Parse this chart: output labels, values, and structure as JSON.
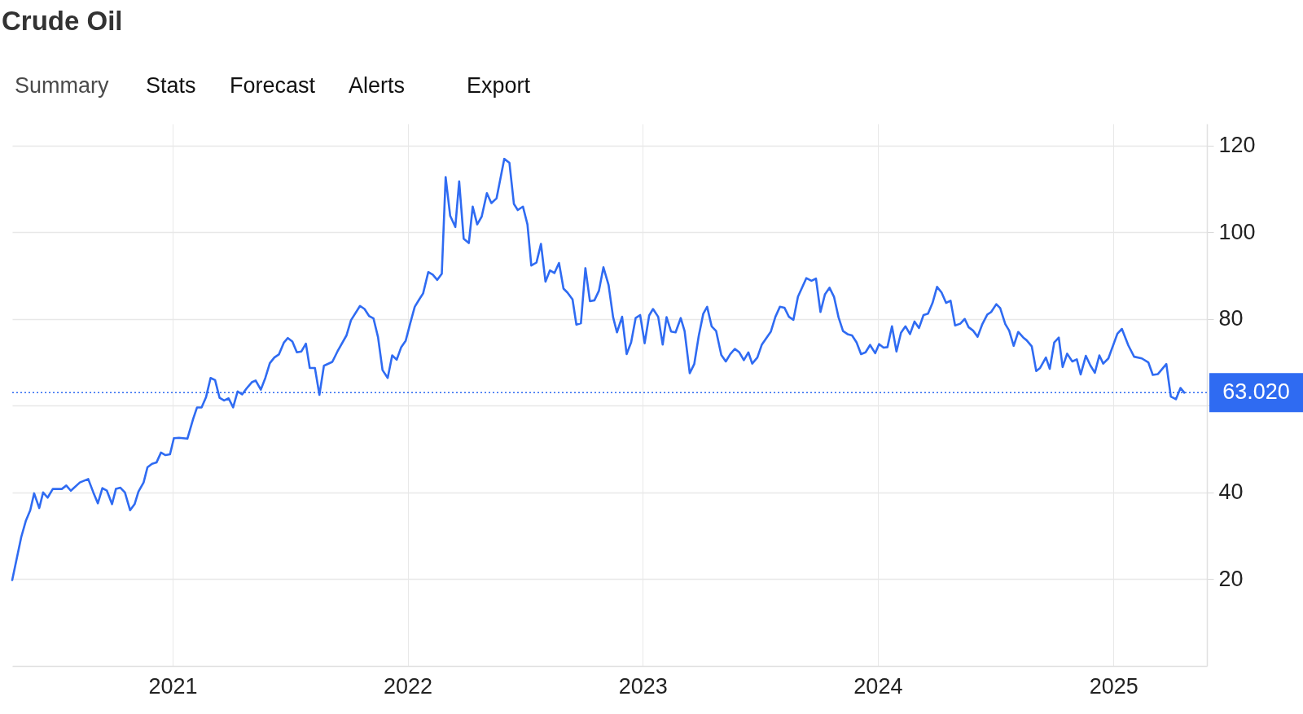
{
  "chart_data": {
    "type": "line",
    "title": "Crude Oil",
    "annotations": [
      "Summary",
      "Stats",
      "Forecast",
      "Alerts",
      "Export"
    ],
    "x": [
      "2020-04-27",
      "2020-05-11",
      "2020-05-18",
      "2020-05-25",
      "2020-05-31",
      "2020-06-08",
      "2020-06-14",
      "2020-06-21",
      "2020-06-29",
      "2020-07-13",
      "2020-07-20",
      "2020-07-27",
      "2020-08-10",
      "2020-08-23",
      "2020-08-31",
      "2020-09-07",
      "2020-09-14",
      "2020-09-21",
      "2020-09-29",
      "2020-10-05",
      "2020-10-12",
      "2020-10-19",
      "2020-10-27",
      "2020-11-03",
      "2020-11-09",
      "2020-11-17",
      "2020-11-23",
      "2020-11-30",
      "2020-12-07",
      "2020-12-14",
      "2020-12-21",
      "2020-12-28",
      "2021-01-03",
      "2021-01-11",
      "2021-01-24",
      "2021-02-02",
      "2021-02-08",
      "2021-02-15",
      "2021-02-22",
      "2021-03-01",
      "2021-03-08",
      "2021-03-15",
      "2021-03-22",
      "2021-03-29",
      "2021-04-05",
      "2021-04-12",
      "2021-04-19",
      "2021-04-26",
      "2021-05-04",
      "2021-05-10",
      "2021-05-18",
      "2021-05-25",
      "2021-06-01",
      "2021-06-08",
      "2021-06-15",
      "2021-06-23",
      "2021-06-29",
      "2021-07-06",
      "2021-07-13",
      "2021-07-20",
      "2021-07-27",
      "2021-08-02",
      "2021-08-10",
      "2021-08-17",
      "2021-08-24",
      "2021-09-06",
      "2021-09-14",
      "2021-09-28",
      "2021-10-05",
      "2021-10-19",
      "2021-10-26",
      "2021-11-02",
      "2021-11-09",
      "2021-11-16",
      "2021-11-23",
      "2021-12-01",
      "2021-12-08",
      "2021-12-15",
      "2021-12-22",
      "2021-12-29",
      "2022-01-05",
      "2022-01-12",
      "2022-01-19",
      "2022-01-25",
      "2022-02-02",
      "2022-02-09",
      "2022-02-16",
      "2022-02-23",
      "2022-03-01",
      "2022-03-08",
      "2022-03-16",
      "2022-03-22",
      "2022-03-29",
      "2022-04-06",
      "2022-04-12",
      "2022-04-19",
      "2022-04-26",
      "2022-05-04",
      "2022-05-11",
      "2022-05-19",
      "2022-05-31",
      "2022-06-08",
      "2022-06-15",
      "2022-06-21",
      "2022-06-29",
      "2022-07-06",
      "2022-07-12",
      "2022-07-20",
      "2022-07-27",
      "2022-08-03",
      "2022-08-10",
      "2022-08-17",
      "2022-08-24",
      "2022-08-31",
      "2022-09-06",
      "2022-09-14",
      "2022-09-20",
      "2022-09-27",
      "2022-10-04",
      "2022-10-11",
      "2022-10-18",
      "2022-10-25",
      "2022-11-01",
      "2022-11-09",
      "2022-11-16",
      "2022-11-22",
      "2022-11-30",
      "2022-12-07",
      "2022-12-14",
      "2022-12-21",
      "2022-12-28",
      "2023-01-04",
      "2023-01-11",
      "2023-01-17",
      "2023-01-25",
      "2023-02-01",
      "2023-02-07",
      "2023-02-14",
      "2023-02-21",
      "2023-03-01",
      "2023-03-07",
      "2023-03-15",
      "2023-03-22",
      "2023-03-29",
      "2023-04-05",
      "2023-04-11",
      "2023-04-18",
      "2023-04-25",
      "2023-05-03",
      "2023-05-10",
      "2023-05-17",
      "2023-05-24",
      "2023-05-31",
      "2023-06-07",
      "2023-06-14",
      "2023-06-20",
      "2023-06-28",
      "2023-07-05",
      "2023-07-12",
      "2023-07-19",
      "2023-07-26",
      "2023-08-02",
      "2023-08-09",
      "2023-08-16",
      "2023-08-23",
      "2023-08-30",
      "2023-09-06",
      "2023-09-12",
      "2023-09-20",
      "2023-09-27",
      "2023-10-04",
      "2023-10-11",
      "2023-10-18",
      "2023-10-25",
      "2023-11-01",
      "2023-11-08",
      "2023-11-15",
      "2023-11-22",
      "2023-11-29",
      "2023-12-06",
      "2023-12-13",
      "2023-12-20",
      "2023-12-28",
      "2024-01-03",
      "2024-01-10",
      "2024-01-16",
      "2024-01-23",
      "2024-01-30",
      "2024-02-06",
      "2024-02-13",
      "2024-02-20",
      "2024-02-27",
      "2024-03-05",
      "2024-03-12",
      "2024-03-19",
      "2024-03-26",
      "2024-04-02",
      "2024-04-09",
      "2024-04-16",
      "2024-04-23",
      "2024-04-30",
      "2024-05-08",
      "2024-05-15",
      "2024-05-21",
      "2024-05-28",
      "2024-06-04",
      "2024-06-11",
      "2024-06-19",
      "2024-06-25",
      "2024-07-03",
      "2024-07-09",
      "2024-07-17",
      "2024-07-23",
      "2024-07-30",
      "2024-08-06",
      "2024-08-14",
      "2024-08-19",
      "2024-08-27",
      "2024-09-03",
      "2024-09-09",
      "2024-09-18",
      "2024-09-24",
      "2024-10-01",
      "2024-10-08",
      "2024-10-14",
      "2024-10-21",
      "2024-10-29",
      "2024-11-05",
      "2024-11-11",
      "2024-11-19",
      "2024-11-26",
      "2024-12-03",
      "2024-12-10",
      "2024-12-16",
      "2024-12-24",
      "2025-01-07",
      "2025-01-14",
      "2025-01-24",
      "2025-02-02",
      "2025-02-14",
      "2025-02-24",
      "2025-03-03",
      "2025-03-11",
      "2025-03-24",
      "2025-03-31",
      "2025-04-08",
      "2025-04-15",
      "2025-04-21"
    ],
    "series": [
      {
        "color": "#2f6bf2",
        "values": [
          19.8,
          29.7,
          33.4,
          35.9,
          39.8,
          36.4,
          40.0,
          38.8,
          40.8,
          40.8,
          41.6,
          40.4,
          42.3,
          43.1,
          40.0,
          37.5,
          41.0,
          40.4,
          37.3,
          40.8,
          41.1,
          40.0,
          35.9,
          37.3,
          40.2,
          42.3,
          45.8,
          46.6,
          46.9,
          49.2,
          48.6,
          48.8,
          52.5,
          52.6,
          52.4,
          57.0,
          59.6,
          59.6,
          62.0,
          66.4,
          65.9,
          61.8,
          61.2,
          61.7,
          59.6,
          63.3,
          62.6,
          64.0,
          65.4,
          65.8,
          63.7,
          66.4,
          69.8,
          71.1,
          71.8,
          74.6,
          75.6,
          74.8,
          72.3,
          72.5,
          74.3,
          68.7,
          68.7,
          62.5,
          69.2,
          70.1,
          72.5,
          76.2,
          79.7,
          83.0,
          82.3,
          80.7,
          80.1,
          75.8,
          68.2,
          66.4,
          71.6,
          70.6,
          73.5,
          75.0,
          79.0,
          82.8,
          84.5,
          85.9,
          90.8,
          90.2,
          89.0,
          90.4,
          112.7,
          103.8,
          101.2,
          111.7,
          98.5,
          97.5,
          105.9,
          101.8,
          103.6,
          109.0,
          106.7,
          107.8,
          116.9,
          116.0,
          106.5,
          105.1,
          105.9,
          101.8,
          92.3,
          93.0,
          97.3,
          88.6,
          91.2,
          90.6,
          92.9,
          87.0,
          86.1,
          84.5,
          78.7,
          79.0,
          91.7,
          84.1,
          84.3,
          86.5,
          91.9,
          87.8,
          80.4,
          76.9,
          80.5,
          71.9,
          74.6,
          80.2,
          80.9,
          74.4,
          80.8,
          82.3,
          80.5,
          74.1,
          80.4,
          77.1,
          76.9,
          80.2,
          77.2,
          67.5,
          69.6,
          76.1,
          81.2,
          82.8,
          78.3,
          77.2,
          71.7,
          70.2,
          71.9,
          73.1,
          72.3,
          70.5,
          72.3,
          69.7,
          71.1,
          74.1,
          75.6,
          77.1,
          80.5,
          82.8,
          82.6,
          80.5,
          79.8,
          85.1,
          87.4,
          89.4,
          88.8,
          89.3,
          81.6,
          85.7,
          87.2,
          85.1,
          80.4,
          77.2,
          76.5,
          76.2,
          74.6,
          71.9,
          72.3,
          74.0,
          72.1,
          74.2,
          73.4,
          73.5,
          78.3,
          72.5,
          76.8,
          78.3,
          76.5,
          79.4,
          77.9,
          80.9,
          81.2,
          83.7,
          87.4,
          86.1,
          83.7,
          84.2,
          78.5,
          78.9,
          80.0,
          78.1,
          77.3,
          75.9,
          78.7,
          81.0,
          81.6,
          83.4,
          82.5,
          78.8,
          77.3,
          73.8,
          77.0,
          75.7,
          75.1,
          73.7,
          68.0,
          68.7,
          71.1,
          68.5,
          74.6,
          75.7,
          68.9,
          72.0,
          70.2,
          70.7,
          67.2,
          71.5,
          69.3,
          67.6,
          71.6,
          69.7,
          70.9,
          76.6,
          77.7,
          73.9,
          71.3,
          70.9,
          70.0,
          67.1,
          67.3,
          69.6,
          62.1,
          61.5,
          64.1,
          63.0
        ]
      }
    ],
    "xlim": [
      "2020-04-27",
      "2025-05-26"
    ],
    "xticks": [
      "2021",
      "2022",
      "2023",
      "2024",
      "2025"
    ],
    "ylim": [
      0,
      125
    ],
    "yticks": [
      20,
      40,
      {
        "value": 60,
        "label": null
      },
      80,
      100,
      120
    ],
    "ref_lines": [
      {
        "axis": "y",
        "value": 63.02,
        "label": "63.020",
        "color": "#2f6bf2",
        "line_style": "dotted"
      }
    ],
    "grid": true
  }
}
